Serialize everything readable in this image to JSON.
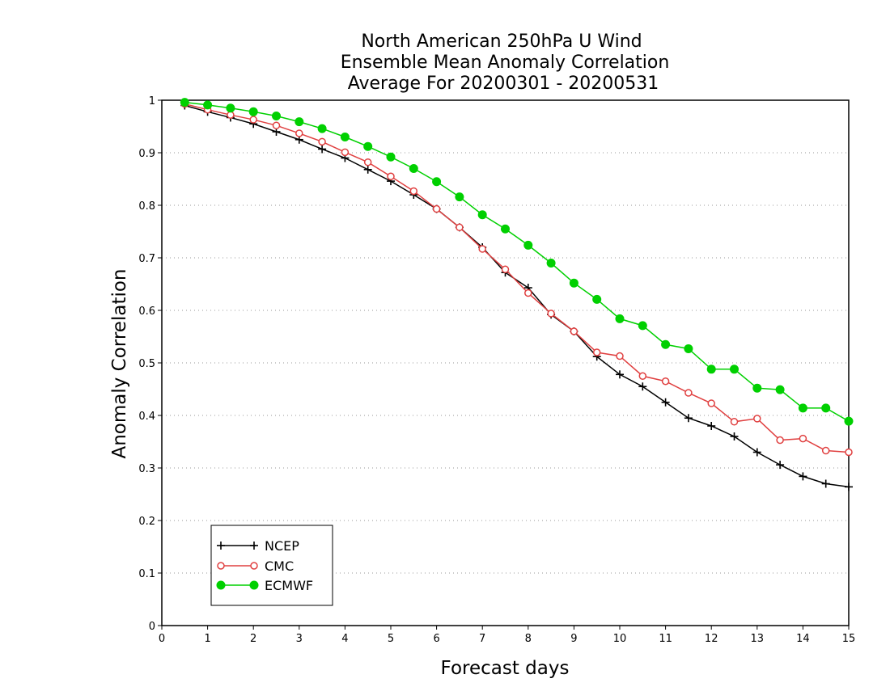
{
  "chart_data": {
    "type": "line",
    "title": [
      "North American 250hPa U Wind",
      "Ensemble Mean Anomaly Correlation",
      "Average For 20200301 - 20200531"
    ],
    "xlabel": "Forecast days",
    "ylabel": "Anomaly Correlation",
    "xlim": [
      0,
      15
    ],
    "ylim": [
      0,
      1
    ],
    "x_ticks": [
      0,
      1,
      2,
      3,
      4,
      5,
      6,
      7,
      8,
      9,
      10,
      11,
      12,
      13,
      14,
      15
    ],
    "y_ticks": [
      0,
      0.1,
      0.2,
      0.3,
      0.4,
      0.5,
      0.6,
      0.7,
      0.8,
      0.9,
      1
    ],
    "grid": "horizontal dotted",
    "legend_position": "bottom-left",
    "x": [
      0.5,
      1,
      1.5,
      2,
      2.5,
      3,
      3.5,
      4,
      4.5,
      5,
      5.5,
      6,
      6.5,
      7,
      7.5,
      8,
      8.5,
      9,
      9.5,
      10,
      10.5,
      11,
      11.5,
      12,
      12.5,
      13,
      13.5,
      14,
      14.5,
      15
    ],
    "series": [
      {
        "name": "NCEP",
        "color": "#000000",
        "marker": "plus",
        "values": [
          0.99,
          0.978,
          0.967,
          0.955,
          0.94,
          0.925,
          0.907,
          0.89,
          0.868,
          0.846,
          0.82,
          0.793,
          0.758,
          0.72,
          0.672,
          0.643,
          0.592,
          0.56,
          0.512,
          0.478,
          0.455,
          0.425,
          0.395,
          0.38,
          0.36,
          0.33,
          0.306,
          0.284,
          0.27,
          0.264
        ]
      },
      {
        "name": "CMC",
        "color": "#e04040",
        "marker": "open-circle",
        "values": [
          0.993,
          0.982,
          0.972,
          0.963,
          0.952,
          0.937,
          0.921,
          0.901,
          0.882,
          0.855,
          0.827,
          0.793,
          0.758,
          0.717,
          0.678,
          0.633,
          0.594,
          0.56,
          0.52,
          0.513,
          0.475,
          0.465,
          0.443,
          0.423,
          0.388,
          0.394,
          0.353,
          0.356,
          0.333,
          0.33
        ]
      },
      {
        "name": "ECMWF",
        "color": "#00d000",
        "marker": "filled-circle",
        "values": [
          0.996,
          0.991,
          0.985,
          0.978,
          0.97,
          0.959,
          0.946,
          0.93,
          0.912,
          0.892,
          0.87,
          0.845,
          0.816,
          0.782,
          0.755,
          0.724,
          0.69,
          0.652,
          0.621,
          0.584,
          0.571,
          0.535,
          0.527,
          0.488,
          0.488,
          0.452,
          0.449,
          0.414,
          0.414,
          0.389
        ]
      }
    ]
  }
}
